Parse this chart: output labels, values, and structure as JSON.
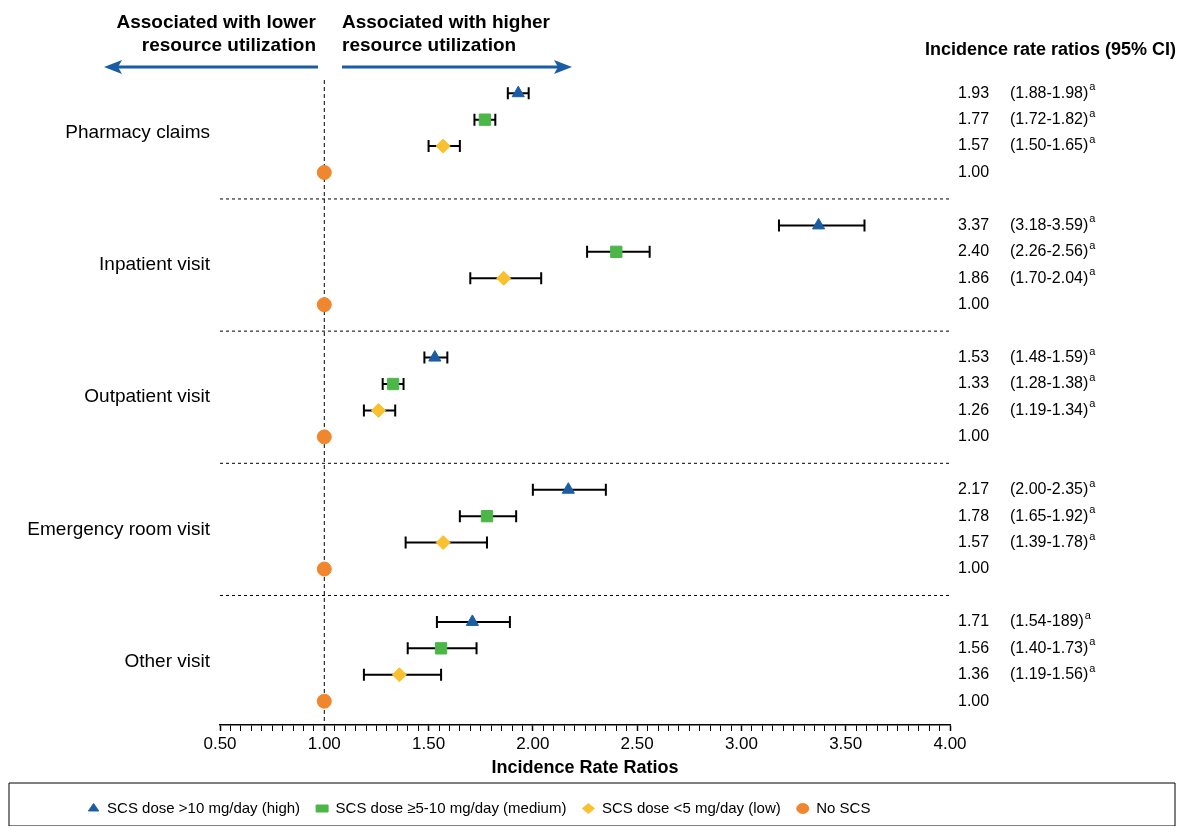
{
  "chart_data": {
    "type": "scatter",
    "orientation": "horizontal",
    "xlabel": "Incidence Rate Ratios",
    "annotations": [
      "Associated with lower resource utilization",
      "Associated with higher resource utilization",
      "Incidence rate ratios (95% CI)"
    ],
    "categories": [
      "Pharmacy claims",
      "Inpatient visit",
      "Outpatient visit",
      "Emergency room visit",
      "Other visit"
    ],
    "xlim": [
      0.5,
      4.0
    ],
    "xticks": [
      {
        "value": 0.5,
        "label": "0.50"
      },
      {
        "value": 0.55,
        "label": null
      },
      {
        "value": 0.6,
        "label": null
      },
      {
        "value": 0.65,
        "label": null
      },
      {
        "value": 0.7,
        "label": null
      },
      {
        "value": 0.75,
        "label": null
      },
      {
        "value": 0.8,
        "label": null
      },
      {
        "value": 0.85,
        "label": null
      },
      {
        "value": 0.9,
        "label": null
      },
      {
        "value": 0.95,
        "label": null
      },
      {
        "value": 1.0,
        "label": "1.00"
      },
      {
        "value": 1.05,
        "label": null
      },
      {
        "value": 1.1,
        "label": null
      },
      {
        "value": 1.15,
        "label": null
      },
      {
        "value": 1.2,
        "label": null
      },
      {
        "value": 1.25,
        "label": null
      },
      {
        "value": 1.3,
        "label": null
      },
      {
        "value": 1.35,
        "label": null
      },
      {
        "value": 1.4,
        "label": null
      },
      {
        "value": 1.45,
        "label": null
      },
      {
        "value": 1.5,
        "label": "1.50"
      },
      {
        "value": 1.55,
        "label": null
      },
      {
        "value": 1.6,
        "label": null
      },
      {
        "value": 1.65,
        "label": null
      },
      {
        "value": 1.7,
        "label": null
      },
      {
        "value": 1.75,
        "label": null
      },
      {
        "value": 1.8,
        "label": null
      },
      {
        "value": 1.85,
        "label": null
      },
      {
        "value": 1.9,
        "label": null
      },
      {
        "value": 1.95,
        "label": null
      },
      {
        "value": 2.0,
        "label": "2.00"
      },
      {
        "value": 2.05,
        "label": null
      },
      {
        "value": 2.1,
        "label": null
      },
      {
        "value": 2.15,
        "label": null
      },
      {
        "value": 2.2,
        "label": null
      },
      {
        "value": 2.25,
        "label": null
      },
      {
        "value": 2.3,
        "label": null
      },
      {
        "value": 2.35,
        "label": null
      },
      {
        "value": 2.4,
        "label": null
      },
      {
        "value": 2.45,
        "label": null
      },
      {
        "value": 2.5,
        "label": "2.50"
      },
      {
        "value": 2.55,
        "label": null
      },
      {
        "value": 2.6,
        "label": null
      },
      {
        "value": 2.65,
        "label": null
      },
      {
        "value": 2.7,
        "label": null
      },
      {
        "value": 2.75,
        "label": null
      },
      {
        "value": 2.8,
        "label": null
      },
      {
        "value": 2.85,
        "label": null
      },
      {
        "value": 2.9,
        "label": null
      },
      {
        "value": 2.95,
        "label": null
      },
      {
        "value": 3.0,
        "label": "3.00"
      },
      {
        "value": 3.05,
        "label": null
      },
      {
        "value": 3.1,
        "label": null
      },
      {
        "value": 3.15,
        "label": null
      },
      {
        "value": 3.2,
        "label": null
      },
      {
        "value": 3.25,
        "label": null
      },
      {
        "value": 3.3,
        "label": null
      },
      {
        "value": 3.35,
        "label": null
      },
      {
        "value": 3.4,
        "label": null
      },
      {
        "value": 3.45,
        "label": null
      },
      {
        "value": 3.5,
        "label": "3.50"
      },
      {
        "value": 3.55,
        "label": null
      },
      {
        "value": 3.6,
        "label": null
      },
      {
        "value": 3.65,
        "label": null
      },
      {
        "value": 3.7,
        "label": null
      },
      {
        "value": 3.75,
        "label": null
      },
      {
        "value": 3.8,
        "label": null
      },
      {
        "value": 3.85,
        "label": null
      },
      {
        "value": 3.9,
        "label": null
      },
      {
        "value": 3.95,
        "label": null
      },
      {
        "value": 4.0,
        "label": "4.00"
      }
    ],
    "grid": "y",
    "legend": "bottom",
    "ref_lines": [
      {
        "axis": "x",
        "value": 1.0,
        "line_style": "dashed",
        "color": "#000000"
      }
    ],
    "series": [
      {
        "name": "SCS dose >10 mg/day (high)",
        "color": "#1a5da6",
        "marker": "triangle",
        "values": [
          1.93,
          3.37,
          1.53,
          2.17,
          1.71
        ],
        "errors": [
          [
            1.88,
            1.98
          ],
          [
            3.18,
            3.59
          ],
          [
            1.48,
            1.59
          ],
          [
            2.0,
            2.35
          ],
          [
            1.54,
            1.89
          ]
        ],
        "value_labels": [
          "1.93 (1.88-1.98)$^{a}$",
          "3.37 (3.18-3.59)$^{a}$",
          "1.53 (1.48-1.59)$^{a}$",
          "2.17 (2.00-2.35)$^{a}$",
          "1.71 (1.54-189)$^{a}$"
        ]
      },
      {
        "name": "SCS dose ≥5-10 mg/day (medium)",
        "color": "#4cb748",
        "marker": "square",
        "values": [
          1.77,
          2.4,
          1.33,
          1.78,
          1.56
        ],
        "errors": [
          [
            1.72,
            1.82
          ],
          [
            2.26,
            2.56
          ],
          [
            1.28,
            1.38
          ],
          [
            1.65,
            1.92
          ],
          [
            1.4,
            1.73
          ]
        ],
        "value_labels": [
          "1.77 (1.72-1.82)$^{a}$",
          "2.40 (2.26-2.56)$^{a}$",
          "1.33 (1.28-1.38)$^{a}$",
          "1.78 (1.65-1.92)$^{a}$",
          "1.56 (1.40-1.73)$^{a}$"
        ]
      },
      {
        "name": "SCS dose <5 mg/day (low)",
        "color": "#f9c12e",
        "marker": "diamond",
        "values": [
          1.57,
          1.86,
          1.26,
          1.57,
          1.36
        ],
        "errors": [
          [
            1.5,
            1.65
          ],
          [
            1.7,
            2.04
          ],
          [
            1.19,
            1.34
          ],
          [
            1.39,
            1.78
          ],
          [
            1.19,
            1.56
          ]
        ],
        "value_labels": [
          "1.57 (1.50-1.65)$^{a}$",
          "1.86 (1.70-2.04)$^{a}$",
          "1.26 (1.19-1.34)$^{a}$",
          "1.57 (1.39-1.78)$^{a}$",
          "1.36 (1.19-1.56)$^{a}$"
        ]
      },
      {
        "name": "No SCS",
        "color": "#f0862e",
        "marker": "circle",
        "values": [
          1.0,
          1.0,
          1.0,
          1.0,
          1.0
        ],
        "value_labels": [
          "1.00",
          "1.00",
          "1.00",
          "1.00",
          "1.00"
        ]
      }
    ]
  }
}
